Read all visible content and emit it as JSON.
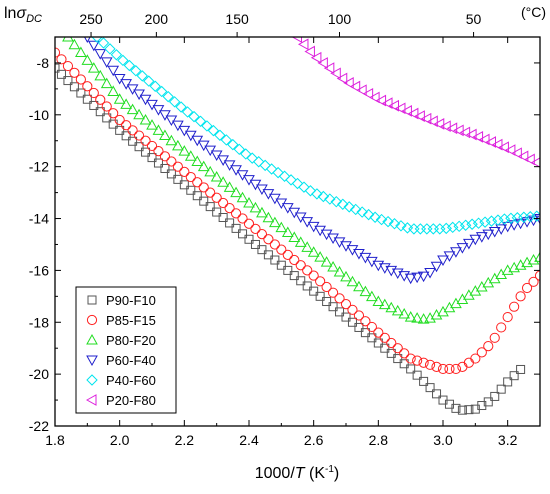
{
  "chart_data": {
    "type": "scatter",
    "xlabel_main": "1000/",
    "xlabel_var": "T",
    "xlabel_unit_open": " (K",
    "xlabel_unit_sup": "-1",
    "xlabel_unit_close": ")",
    "ylabel_main": "ln",
    "ylabel_sym": "σ",
    "ylabel_sub": "DC",
    "top_axis_unit": "(°C)",
    "xlim": [
      1.8,
      3.3
    ],
    "ylim": [
      -22,
      -7
    ],
    "x_ticks": [
      "1.8",
      "2.0",
      "2.2",
      "2.4",
      "2.6",
      "2.8",
      "3.0",
      "3.2"
    ],
    "y_ticks": [
      "-8",
      "-10",
      "-12",
      "-14",
      "-16",
      "-18",
      "-20",
      "-22"
    ],
    "top_ticks": [
      {
        "label": "250",
        "celsius": 250
      },
      {
        "label": "200",
        "celsius": 200
      },
      {
        "label": "150",
        "celsius": 150
      },
      {
        "label": "100",
        "celsius": 100
      },
      {
        "label": "50",
        "celsius": 50
      }
    ],
    "legend_position": "lower-left",
    "series": [
      {
        "name": "P90-F10",
        "marker": "square",
        "color": "#555555",
        "anchors": [
          [
            1.8,
            -8.2
          ],
          [
            2.0,
            -10.6
          ],
          [
            2.2,
            -12.7
          ],
          [
            2.4,
            -14.8
          ],
          [
            2.6,
            -16.8
          ],
          [
            2.8,
            -18.8
          ],
          [
            2.9,
            -19.8
          ],
          [
            3.0,
            -21.0
          ],
          [
            3.05,
            -21.4
          ],
          [
            3.1,
            -21.35
          ],
          [
            3.15,
            -21.0
          ],
          [
            3.2,
            -20.3
          ],
          [
            3.25,
            -19.7
          ]
        ]
      },
      {
        "name": "P85-F15",
        "marker": "circle",
        "color": "#ff2020",
        "anchors": [
          [
            1.8,
            -7.6
          ],
          [
            2.0,
            -10.2
          ],
          [
            2.2,
            -12.2
          ],
          [
            2.4,
            -14.2
          ],
          [
            2.6,
            -16.2
          ],
          [
            2.8,
            -18.4
          ],
          [
            2.9,
            -19.4
          ],
          [
            3.0,
            -19.8
          ],
          [
            3.05,
            -19.8
          ],
          [
            3.1,
            -19.4
          ],
          [
            3.15,
            -18.8
          ],
          [
            3.2,
            -17.8
          ],
          [
            3.25,
            -16.8
          ],
          [
            3.3,
            -16.2
          ]
        ]
      },
      {
        "name": "P80-F20",
        "marker": "triangle-up",
        "color": "#22dd22",
        "anchors": [
          [
            1.84,
            -7.0
          ],
          [
            2.0,
            -9.4
          ],
          [
            2.2,
            -11.4
          ],
          [
            2.4,
            -13.4
          ],
          [
            2.6,
            -15.3
          ],
          [
            2.8,
            -17.2
          ],
          [
            2.9,
            -17.8
          ],
          [
            2.95,
            -17.9
          ],
          [
            3.0,
            -17.6
          ],
          [
            3.1,
            -16.8
          ],
          [
            3.2,
            -16.0
          ],
          [
            3.3,
            -15.5
          ]
        ]
      },
      {
        "name": "P60-F40",
        "marker": "triangle-down",
        "color": "#2020cc",
        "anchors": [
          [
            1.9,
            -7.0
          ],
          [
            2.0,
            -8.6
          ],
          [
            2.2,
            -10.6
          ],
          [
            2.4,
            -12.5
          ],
          [
            2.6,
            -14.3
          ],
          [
            2.8,
            -15.8
          ],
          [
            2.9,
            -16.3
          ],
          [
            2.95,
            -16.2
          ],
          [
            3.0,
            -15.6
          ],
          [
            3.1,
            -14.8
          ],
          [
            3.2,
            -14.3
          ],
          [
            3.3,
            -14.0
          ]
        ]
      },
      {
        "name": "P40-F60",
        "marker": "diamond",
        "color": "#00e5ee",
        "anchors": [
          [
            1.93,
            -7.0
          ],
          [
            2.0,
            -7.8
          ],
          [
            2.2,
            -9.8
          ],
          [
            2.4,
            -11.6
          ],
          [
            2.6,
            -13.0
          ],
          [
            2.8,
            -14.0
          ],
          [
            2.9,
            -14.4
          ],
          [
            3.0,
            -14.4
          ],
          [
            3.1,
            -14.2
          ],
          [
            3.2,
            -14.0
          ],
          [
            3.3,
            -13.9
          ]
        ]
      },
      {
        "name": "P20-F80",
        "marker": "triangle-left",
        "color": "#dd22dd",
        "anchors": [
          [
            2.55,
            -7.0
          ],
          [
            2.6,
            -7.7
          ],
          [
            2.7,
            -8.7
          ],
          [
            2.8,
            -9.4
          ],
          [
            2.9,
            -9.9
          ],
          [
            3.0,
            -10.4
          ],
          [
            3.1,
            -10.8
          ],
          [
            3.2,
            -11.3
          ],
          [
            3.3,
            -11.9
          ]
        ]
      }
    ]
  }
}
